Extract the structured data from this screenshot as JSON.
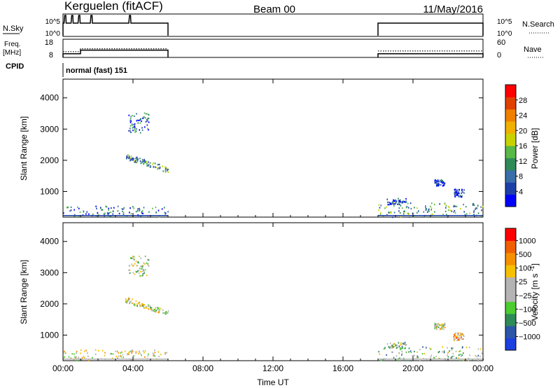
{
  "header": {
    "station": "Kerguelen (fitACF)",
    "beam": "Beam 00",
    "date": "11/May/2016"
  },
  "noise_panel": {
    "left_label": "N.Sky",
    "right_label": "N.Search",
    "left_ticks": [
      "10^5",
      "10^0"
    ],
    "right_ticks": [
      "10^5",
      "10^0"
    ]
  },
  "freq_panel": {
    "left_label_1": "Freq.",
    "left_label_2": "[MHz]",
    "right_label": "Nave",
    "left_ticks": [
      "18",
      "8"
    ],
    "right_ticks": [
      "60",
      "0"
    ],
    "cpid_label": "CPID",
    "mode_text": "normal (fast) 151"
  },
  "colors": {
    "power_scale": [
      "#0000ff",
      "#1f3fa8",
      "#3a6ea8",
      "#2e8b57",
      "#58b848",
      "#c8d200",
      "#f0b000",
      "#f08000",
      "#e04000",
      "#ff0000"
    ],
    "velocity_scale": [
      "#1c3fe0",
      "#2d55a8",
      "#2e8b57",
      "#4ccc30",
      "#b4b4b4",
      "#b4b4b4",
      "#f5c000",
      "#f59000",
      "#f06000",
      "#ff0000"
    ]
  },
  "chart_data": [
    {
      "type": "heatmap",
      "name": "power",
      "ylabel": "Slant Range [km]",
      "xlabel": "",
      "x_ticks": [
        "00:00",
        "04:00",
        "08:00",
        "12:00",
        "16:00",
        "20:00",
        "00:00"
      ],
      "x_tick_hours": [
        0,
        4,
        8,
        12,
        16,
        20,
        24
      ],
      "y_ticks": [
        1000,
        2000,
        3000,
        4000
      ],
      "xlim": [
        0,
        24
      ],
      "ylim": [
        180,
        4600
      ],
      "colorbar": {
        "label": "Power [dB]",
        "ticks": [
          4,
          8,
          12,
          16,
          20,
          24,
          28
        ]
      },
      "clusters": [
        {
          "t0": 0.0,
          "t1": 6.0,
          "r0": 200,
          "r1": 550,
          "level": 0.25
        },
        {
          "t0": 3.55,
          "t1": 6.0,
          "r0": 1550,
          "r1": 2250,
          "level": 0.35
        },
        {
          "t0": 3.7,
          "t1": 4.9,
          "r0": 2900,
          "r1": 3550,
          "level": 0.2
        },
        {
          "t0": 18.0,
          "t1": 24.0,
          "r0": 200,
          "r1": 650,
          "level": 0.35
        },
        {
          "t0": 18.5,
          "t1": 19.6,
          "r0": 600,
          "r1": 800,
          "level": 0.2
        },
        {
          "t0": 21.2,
          "t1": 21.8,
          "r0": 1200,
          "r1": 1400,
          "level": 0.1
        },
        {
          "t0": 22.3,
          "t1": 22.9,
          "r0": 850,
          "r1": 1100,
          "level": 0.1
        }
      ]
    },
    {
      "type": "heatmap",
      "name": "velocity",
      "ylabel": "Slant Range [km]",
      "xlabel": "Time UT",
      "x_ticks": [
        "00:00",
        "04:00",
        "08:00",
        "12:00",
        "16:00",
        "20:00",
        "00:00"
      ],
      "x_tick_hours": [
        0,
        4,
        8,
        12,
        16,
        20,
        24
      ],
      "y_ticks": [
        1000,
        2000,
        3000,
        4000
      ],
      "xlim": [
        0,
        24
      ],
      "ylim": [
        180,
        4600
      ],
      "colorbar": {
        "label": "Velocity [m s^-1]",
        "ticks": [
          1000,
          500,
          100,
          25,
          -25,
          -100,
          -500,
          -1000
        ]
      },
      "clusters": [
        {
          "t0": 0.0,
          "t1": 6.0,
          "r0": 200,
          "r1": 550,
          "level": 0.55
        },
        {
          "t0": 3.55,
          "t1": 6.0,
          "r0": 1550,
          "r1": 2250,
          "level": 0.5
        },
        {
          "t0": 3.7,
          "t1": 4.9,
          "r0": 2900,
          "r1": 3550,
          "level": 0.45
        },
        {
          "t0": 18.0,
          "t1": 24.0,
          "r0": 200,
          "r1": 650,
          "level": 0.4
        },
        {
          "t0": 18.5,
          "t1": 19.6,
          "r0": 600,
          "r1": 800,
          "level": 0.4
        },
        {
          "t0": 21.2,
          "t1": 21.8,
          "r0": 1200,
          "r1": 1400,
          "level": 0.5
        },
        {
          "t0": 22.3,
          "t1": 22.9,
          "r0": 850,
          "r1": 1100,
          "level": 0.7
        }
      ]
    }
  ],
  "time_series": {
    "operating_intervals_hours": [
      [
        0,
        6
      ],
      [
        18,
        24
      ]
    ],
    "freq_steps": [
      {
        "t": 0,
        "v": 10
      },
      {
        "t": 1,
        "v": 12
      },
      {
        "t": 6,
        "v": 0
      }
    ],
    "noise_spikes_hours": [
      0.1,
      0.5,
      0.9,
      1.6,
      3.8
    ]
  }
}
